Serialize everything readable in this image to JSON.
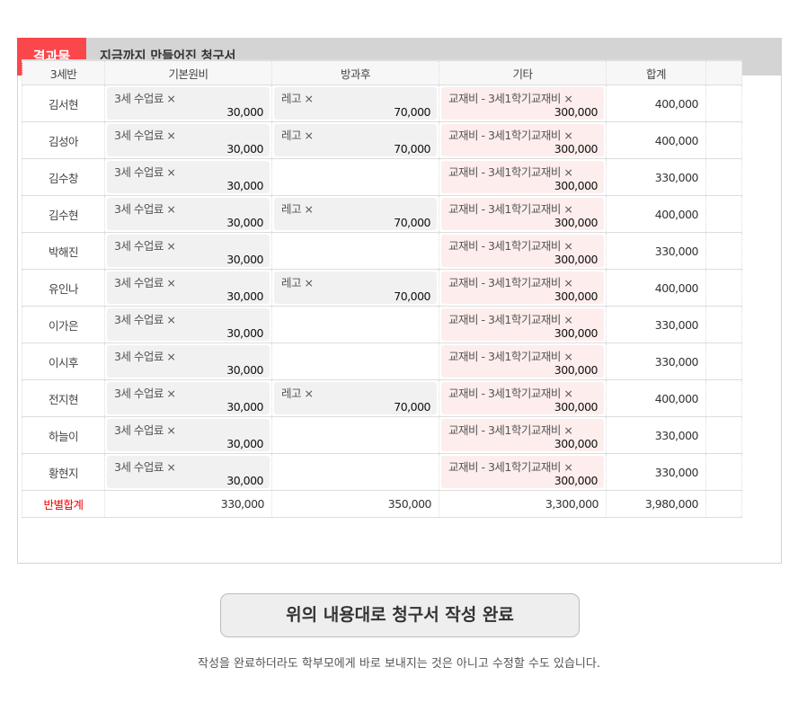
{
  "panel": {
    "tag": "결과물",
    "title": "지금까지 만들어진 청구서"
  },
  "table": {
    "headers": [
      "3세반",
      "기본원비",
      "방과후",
      "기타",
      "합계",
      ""
    ],
    "rows": [
      {
        "name": "김서현",
        "basic": "3세 수업료 ×",
        "basic_amt": "30,000",
        "after": "레고 ×",
        "after_amt": "70,000",
        "etc": "교재비 - 3세1학기교재비 ×",
        "etc_amt": "300,000",
        "total": "400,000"
      },
      {
        "name": "김성아",
        "basic": "3세 수업료 ×",
        "basic_amt": "30,000",
        "after": "레고 ×",
        "after_amt": "70,000",
        "etc": "교재비 - 3세1학기교재비 ×",
        "etc_amt": "300,000",
        "total": "400,000"
      },
      {
        "name": "김수창",
        "basic": "3세 수업료 ×",
        "basic_amt": "30,000",
        "after": "",
        "after_amt": "",
        "etc": "교재비 - 3세1학기교재비 ×",
        "etc_amt": "300,000",
        "total": "330,000"
      },
      {
        "name": "김수현",
        "basic": "3세 수업료 ×",
        "basic_amt": "30,000",
        "after": "레고 ×",
        "after_amt": "70,000",
        "etc": "교재비 - 3세1학기교재비 ×",
        "etc_amt": "300,000",
        "total": "400,000"
      },
      {
        "name": "박해진",
        "basic": "3세 수업료 ×",
        "basic_amt": "30,000",
        "after": "",
        "after_amt": "",
        "etc": "교재비 - 3세1학기교재비 ×",
        "etc_amt": "300,000",
        "total": "330,000"
      },
      {
        "name": "유인나",
        "basic": "3세 수업료 ×",
        "basic_amt": "30,000",
        "after": "레고 ×",
        "after_amt": "70,000",
        "etc": "교재비 - 3세1학기교재비 ×",
        "etc_amt": "300,000",
        "total": "400,000"
      },
      {
        "name": "이가은",
        "basic": "3세 수업료 ×",
        "basic_amt": "30,000",
        "after": "",
        "after_amt": "",
        "etc": "교재비 - 3세1학기교재비 ×",
        "etc_amt": "300,000",
        "total": "330,000"
      },
      {
        "name": "이시후",
        "basic": "3세 수업료 ×",
        "basic_amt": "30,000",
        "after": "",
        "after_amt": "",
        "etc": "교재비 - 3세1학기교재비 ×",
        "etc_amt": "300,000",
        "total": "330,000"
      },
      {
        "name": "전지현",
        "basic": "3세 수업료 ×",
        "basic_amt": "30,000",
        "after": "레고 ×",
        "after_amt": "70,000",
        "etc": "교재비 - 3세1학기교재비 ×",
        "etc_amt": "300,000",
        "total": "400,000"
      },
      {
        "name": "하늘이",
        "basic": "3세 수업료 ×",
        "basic_amt": "30,000",
        "after": "",
        "after_amt": "",
        "etc": "교재비 - 3세1학기교재비 ×",
        "etc_amt": "300,000",
        "total": "330,000"
      },
      {
        "name": "황현지",
        "basic": "3세 수업료 ×",
        "basic_amt": "30,000",
        "after": "",
        "after_amt": "",
        "etc": "교재비 - 3세1학기교재비 ×",
        "etc_amt": "300,000",
        "total": "330,000"
      }
    ],
    "summary": {
      "label": "반별합계",
      "basic": "330,000",
      "after": "350,000",
      "etc": "3,300,000",
      "total": "3,980,000"
    }
  },
  "submit_label": "위의 내용대로 청구서 작성 완료",
  "note": "작성을 완료하더라도 학부모에게 바로 보내지는 것은 아니고 수정할 수도 있습니다.",
  "colors": {
    "accent": "#f9474c",
    "summary_label": "#e00000"
  }
}
